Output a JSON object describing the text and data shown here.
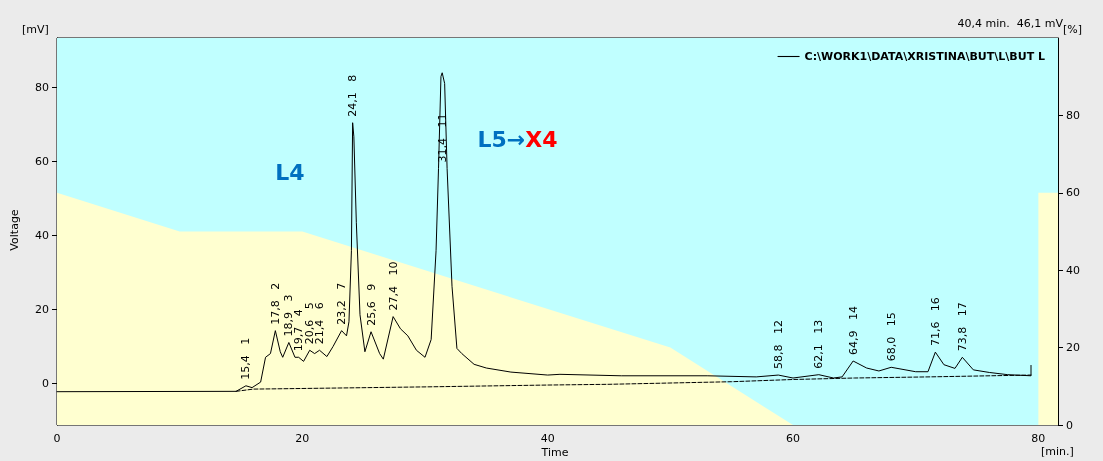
{
  "chart_data": {
    "type": "line",
    "xlabel": "Time",
    "ylabel": "Voltage",
    "legend": "top right",
    "marker": "none",
    "xlim": [
      0,
      81.6
    ],
    "xticks": [
      0,
      20,
      40,
      60,
      80
    ],
    "ylim": [
      -11.3,
      93.3
    ],
    "yticks": [
      0,
      20,
      40,
      60,
      80
    ],
    "y2lim": [
      0,
      100
    ],
    "y2ticks": [
      0,
      20,
      40,
      60,
      80
    ],
    "bands": [
      {
        "axis": "y2",
        "from": 0,
        "to": 100,
        "color": "#c0ffff"
      }
    ],
    "series": [
      {
        "type": "area",
        "axis": "y2",
        "color": "#ffffd0",
        "x": [
          0,
          10,
          20,
          50,
          60,
          80,
          80,
          81.6
        ],
        "values": [
          60,
          50,
          50,
          20,
          0,
          0,
          60,
          60
        ]
      },
      {
        "name": "C:\\WORK1\\DATA\\XRISTINA\\BUT\\L\\BUT L",
        "color": "#000000",
        "line_style": "solid",
        "x": [
          0,
          14.6,
          15.4,
          15.9,
          16.6,
          17.0,
          17.4,
          17.8,
          18.2,
          18.4,
          18.9,
          19.4,
          19.7,
          20.1,
          20.6,
          21.0,
          21.4,
          22.0,
          22.5,
          23.2,
          23.6,
          23.8,
          24.0,
          24.1,
          24.2,
          24.4,
          24.7,
          25.1,
          25.6,
          26.3,
          26.6,
          27.4,
          28.0,
          28.6,
          29.3,
          30.0,
          30.5,
          30.9,
          31.1,
          31.3,
          31.4,
          31.6,
          31.8,
          32.2,
          32.6,
          33.0,
          34.0,
          35.0,
          37.0,
          40,
          41,
          46,
          53,
          57,
          58.8,
          60,
          62.1,
          63.3,
          64.0,
          64.9,
          66,
          67,
          68.0,
          70,
          71,
          71.6,
          72.3,
          73.2,
          73.8,
          74.7,
          76,
          77.5,
          79.4,
          79.4
        ],
        "values": [
          -2.3,
          -2.2,
          -0.7,
          -1.2,
          0.3,
          7,
          8,
          14.2,
          8.5,
          7,
          11,
          7,
          7,
          5.9,
          8.9,
          8,
          8.9,
          7.2,
          9.9,
          14.2,
          12.8,
          16.6,
          35.8,
          70.4,
          66.6,
          43.5,
          18.5,
          8.5,
          13.9,
          8,
          6.5,
          18,
          14.7,
          12.8,
          8.9,
          7,
          11.8,
          35.8,
          58,
          82.9,
          83.9,
          81,
          58,
          26.2,
          9.4,
          8,
          5.1,
          4.1,
          3,
          2.2,
          2.4,
          2,
          2,
          1.7,
          2.2,
          1.4,
          2.3,
          1.4,
          1.7,
          6,
          4.1,
          3.3,
          4.3,
          3.1,
          3.1,
          8.4,
          5,
          4,
          7,
          3.6,
          2.9,
          2.3,
          2,
          4.8
        ]
      },
      {
        "color": "#000000",
        "line_style": "dashed",
        "x": [
          14.6,
          16,
          30,
          40,
          45,
          55,
          60,
          65,
          71,
          79.4
        ],
        "values": [
          -2.2,
          -1.6,
          -1,
          -0.5,
          -0.3,
          0.4,
          1,
          1.4,
          1.7,
          2.2
        ]
      }
    ],
    "annotations": [
      "L4",
      "L5→X4",
      "40,4 min.  46,1 mV",
      "[mV]",
      "[%]",
      "[min.]",
      {
        "text": "15,4   1",
        "x": 15.4,
        "y": -0.7
      },
      {
        "text": "17,8   2",
        "x": 17.8,
        "y": 14.2
      },
      {
        "text": "18,9   3",
        "x": 18.9,
        "y": 11
      },
      {
        "text": "19,7   4",
        "x": 19.7,
        "y": 7
      },
      {
        "text": "20,6   5",
        "x": 20.6,
        "y": 8.9
      },
      {
        "text": "21,4   6",
        "x": 21.4,
        "y": 8.9
      },
      {
        "text": "23,2   7",
        "x": 23.2,
        "y": 14.2
      },
      {
        "text": "24,1   8",
        "x": 24.1,
        "y": 70.4
      },
      {
        "text": "25,6   9",
        "x": 25.6,
        "y": 13.9
      },
      {
        "text": "27,4   10",
        "x": 27.4,
        "y": 18
      },
      {
        "text": "31,4   11",
        "x": 31.4,
        "y": 58
      },
      {
        "text": "58,8   12",
        "x": 58.8,
        "y": 2.2
      },
      {
        "text": "62,1   13",
        "x": 62.1,
        "y": 2.3
      },
      {
        "text": "64,9   14",
        "x": 64.9,
        "y": 6
      },
      {
        "text": "68,0   15",
        "x": 68.0,
        "y": 4.3
      },
      {
        "text": "71,6   16",
        "x": 71.6,
        "y": 8.4
      },
      {
        "text": "73,8   17",
        "x": 73.8,
        "y": 7
      }
    ]
  }
}
